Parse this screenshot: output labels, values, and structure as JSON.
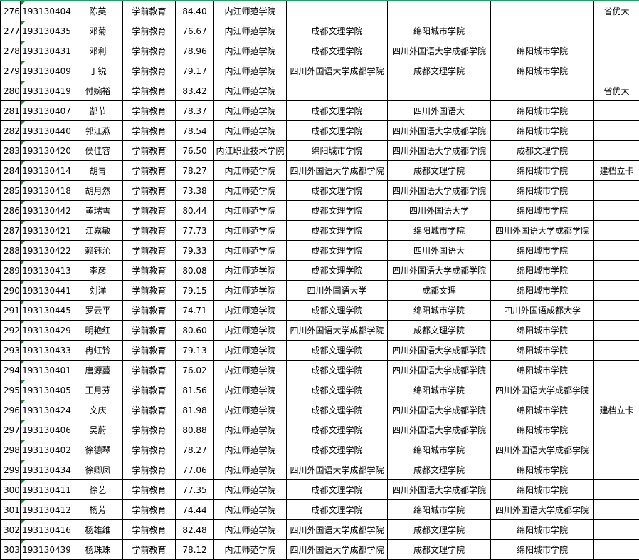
{
  "table": {
    "rows": [
      [
        "276",
        "193130404",
        "陈英",
        "学前教育",
        "84.40",
        "内江师范学院",
        null,
        null,
        null,
        "省优大"
      ],
      [
        "277",
        "193130435",
        "邓菊",
        "学前教育",
        "76.67",
        "内江师范学院",
        "成都文理学院",
        "绵阳城市学院",
        null,
        null
      ],
      [
        "278",
        "193130431",
        "邓利",
        "学前教育",
        "78.96",
        "内江师范学院",
        "成都文理学院",
        "四川外国语大学成都学院",
        "绵阳城市学院",
        null
      ],
      [
        "279",
        "193130409",
        "丁锐",
        "学前教育",
        "79.17",
        "内江师范学院",
        "四川外国语大学成都学院",
        "成都文理学院",
        "绵阳城市学院",
        null
      ],
      [
        "280",
        "193130419",
        "付婉裕",
        "学前教育",
        "83.42",
        "内江师范学院",
        null,
        null,
        null,
        "省优大"
      ],
      [
        "281",
        "193130407",
        "郜节",
        "学前教育",
        "78.37",
        "内江师范学院",
        "成都文理学院",
        "四川外国语大",
        "绵阳城市学院",
        null
      ],
      [
        "282",
        "193130440",
        "郭江燕",
        "学前教育",
        "78.54",
        "内江师范学院",
        "成都文理学院",
        "四川外国语大学成都学院",
        "绵阳城市学院",
        null
      ],
      [
        "283",
        "193130420",
        "侯佳容",
        "学前教育",
        "76.50",
        "内江职业技术学院",
        "绵阳城市学院",
        "四川外国语大学成都学院",
        "成都文理学院",
        null
      ],
      [
        "284",
        "193130414",
        "胡青",
        "学前教育",
        "78.27",
        "内江师范学院",
        "四川外国语大学成都学院",
        "成都文理学院",
        "绵阳城市学院",
        "建档立卡"
      ],
      [
        "285",
        "193130418",
        "胡月然",
        "学前教育",
        "73.38",
        "内江师范学院",
        "成都文理学院",
        "四川外国语大学成都学院",
        "绵阳城市学院",
        null
      ],
      [
        "286",
        "193130442",
        "黄瑞雪",
        "学前教育",
        "80.44",
        "内江师范学院",
        "成都文理学院",
        "四川外国语大学",
        "绵阳城市学院",
        null
      ],
      [
        "287",
        "193130421",
        "江嘉敏",
        "学前教育",
        "77.73",
        "内江师范学院",
        "成都文理学院",
        "绵阳城市学院",
        "四川外国语大学成都学院",
        null
      ],
      [
        "288",
        "193130422",
        "赖钰沁",
        "学前教育",
        "79.33",
        "内江师范学院",
        "成都文理学院",
        "四川外国语大",
        "绵阳城市学院",
        null
      ],
      [
        "289",
        "193130413",
        "李彦",
        "学前教育",
        "80.08",
        "内江师范学院",
        "成都文理学院",
        "四川外国语大学成都学院",
        "绵阳城市学院",
        null
      ],
      [
        "290",
        "193130441",
        "刘洋",
        "学前教育",
        "79.15",
        "内江师范学院",
        "四川外国语大学",
        "成都文理",
        "绵阳城市学院",
        null
      ],
      [
        "291",
        "193130445",
        "罗云平",
        "学前教育",
        "74.71",
        "内江师范学院",
        "成都文理学院",
        "绵阳城市学院",
        "四川外国语成都大学",
        null
      ],
      [
        "292",
        "193130429",
        "明艳红",
        "学前教育",
        "80.60",
        "内江师范学院",
        "四川外国语大学成都学院",
        "成都文理学院",
        "绵阳城市学院",
        null
      ],
      [
        "293",
        "193130433",
        "冉虹铃",
        "学前教育",
        "79.13",
        "内江师范学院",
        "成都文理学院",
        "四川外国语大学成都学院",
        "绵阳城市学院",
        null
      ],
      [
        "294",
        "193130401",
        "唐源蔓",
        "学前教育",
        "76.02",
        "内江师范学院",
        "成都文理学院",
        "四川外国语大学成都学院",
        "绵阳城市学院",
        null
      ],
      [
        "295",
        "193130405",
        "王月芬",
        "学前教育",
        "81.56",
        "内江师范学院",
        "成都文理学院",
        "绵阳城市学院",
        "四川外国语大学成都学院",
        null
      ],
      [
        "296",
        "193130424",
        "文庆",
        "学前教育",
        "81.98",
        "内江师范学院",
        "成都文理学院",
        "四川外国语大学成都学院",
        "绵阳城市学院",
        "建档立卡"
      ],
      [
        "297",
        "193130406",
        "吴蔚",
        "学前教育",
        "80.88",
        "内江师范学院",
        "成都文理学院",
        "四川外国语大学成都学院",
        "绵阳城市学院",
        null
      ],
      [
        "298",
        "193130402",
        "徐德琴",
        "学前教育",
        "78.27",
        "内江师范学院",
        "成都文理学院",
        "绵阳城市学院",
        "四川外国语大学成都学院",
        null
      ],
      [
        "299",
        "193130434",
        "徐卿凤",
        "学前教育",
        "77.06",
        "内江师范学院",
        "四川外国语大学成都学院",
        "成都文理学院",
        "绵阳城市学院",
        null
      ],
      [
        "300",
        "193130411",
        "徐艺",
        "学前教育",
        "77.35",
        "内江师范学院",
        "成都文理学院",
        "四川外国语大学成都学院",
        "绵阳城市学院",
        null
      ],
      [
        "301",
        "193130412",
        "杨芳",
        "学前教育",
        "74.44",
        "内江师范学院",
        "成都文理学院",
        "绵阳城市学院",
        "四川外国语大学成都学院",
        null
      ],
      [
        "302",
        "193130416",
        "杨雄维",
        "学前教育",
        "82.48",
        "内江师范学院",
        "四川外国语大学成都学院",
        "成都文理学院",
        "绵阳城市学院",
        null
      ],
      [
        "303",
        "193130439",
        "杨珠珠",
        "学前教育",
        "78.12",
        "内江师范学院",
        "四川外国语大学成都学院",
        "成都文理学院",
        "绵阳城市学院",
        null
      ]
    ]
  }
}
